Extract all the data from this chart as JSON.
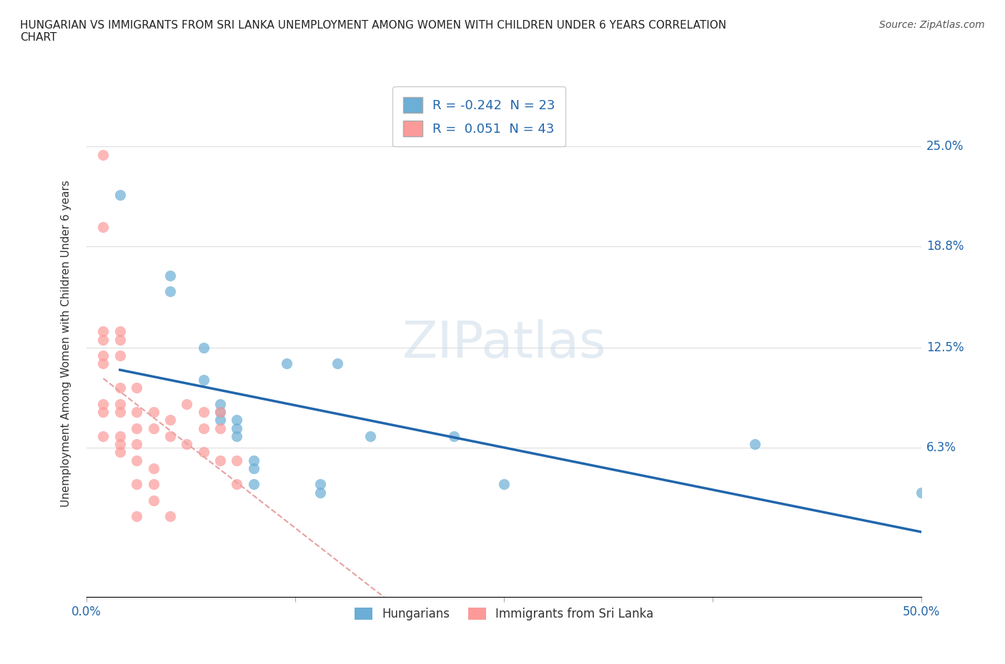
{
  "title": "HUNGARIAN VS IMMIGRANTS FROM SRI LANKA UNEMPLOYMENT AMONG WOMEN WITH CHILDREN UNDER 6 YEARS CORRELATION\nCHART",
  "source": "Source: ZipAtlas.com",
  "ylabel": "Unemployment Among Women with Children Under 6 years",
  "xlim": [
    0.0,
    0.5
  ],
  "ylim": [
    -0.03,
    0.285
  ],
  "ytick_labels_right": [
    "25.0%",
    "18.8%",
    "12.5%",
    "6.3%"
  ],
  "ytick_values_right": [
    0.25,
    0.188,
    0.125,
    0.063
  ],
  "r_hungarian": -0.242,
  "n_hungarian": 23,
  "r_srilanka": 0.051,
  "n_srilanka": 43,
  "hungarian_color": "#6baed6",
  "srilanka_color": "#fb9a99",
  "hungarian_line_color": "#2166ac",
  "srilanka_line_color": "#e8a0a0",
  "watermark": "ZIPatlas",
  "legend_label_1": "Hungarians",
  "legend_label_2": "Immigrants from Sri Lanka",
  "hungarian_x": [
    0.02,
    0.05,
    0.05,
    0.07,
    0.07,
    0.08,
    0.08,
    0.08,
    0.09,
    0.09,
    0.09,
    0.1,
    0.1,
    0.1,
    0.12,
    0.14,
    0.14,
    0.15,
    0.17,
    0.22,
    0.25,
    0.4,
    0.5
  ],
  "hungarian_y": [
    0.22,
    0.17,
    0.16,
    0.125,
    0.105,
    0.09,
    0.085,
    0.08,
    0.08,
    0.075,
    0.07,
    0.055,
    0.05,
    0.04,
    0.115,
    0.04,
    0.035,
    0.115,
    0.07,
    0.07,
    0.04,
    0.065,
    0.035
  ],
  "srilanka_x": [
    0.01,
    0.01,
    0.01,
    0.01,
    0.01,
    0.01,
    0.01,
    0.01,
    0.01,
    0.02,
    0.02,
    0.02,
    0.02,
    0.02,
    0.02,
    0.02,
    0.02,
    0.02,
    0.03,
    0.03,
    0.03,
    0.03,
    0.03,
    0.03,
    0.03,
    0.04,
    0.04,
    0.04,
    0.04,
    0.04,
    0.05,
    0.05,
    0.05,
    0.06,
    0.06,
    0.07,
    0.07,
    0.07,
    0.08,
    0.08,
    0.08,
    0.09,
    0.09
  ],
  "srilanka_y": [
    0.245,
    0.2,
    0.135,
    0.13,
    0.12,
    0.115,
    0.09,
    0.085,
    0.07,
    0.135,
    0.13,
    0.12,
    0.1,
    0.09,
    0.085,
    0.07,
    0.065,
    0.06,
    0.1,
    0.085,
    0.075,
    0.065,
    0.055,
    0.04,
    0.02,
    0.085,
    0.075,
    0.05,
    0.04,
    0.03,
    0.08,
    0.07,
    0.02,
    0.09,
    0.065,
    0.085,
    0.075,
    0.06,
    0.085,
    0.075,
    0.055,
    0.055,
    0.04
  ],
  "background_color": "#ffffff",
  "grid_color": "#dddddd"
}
